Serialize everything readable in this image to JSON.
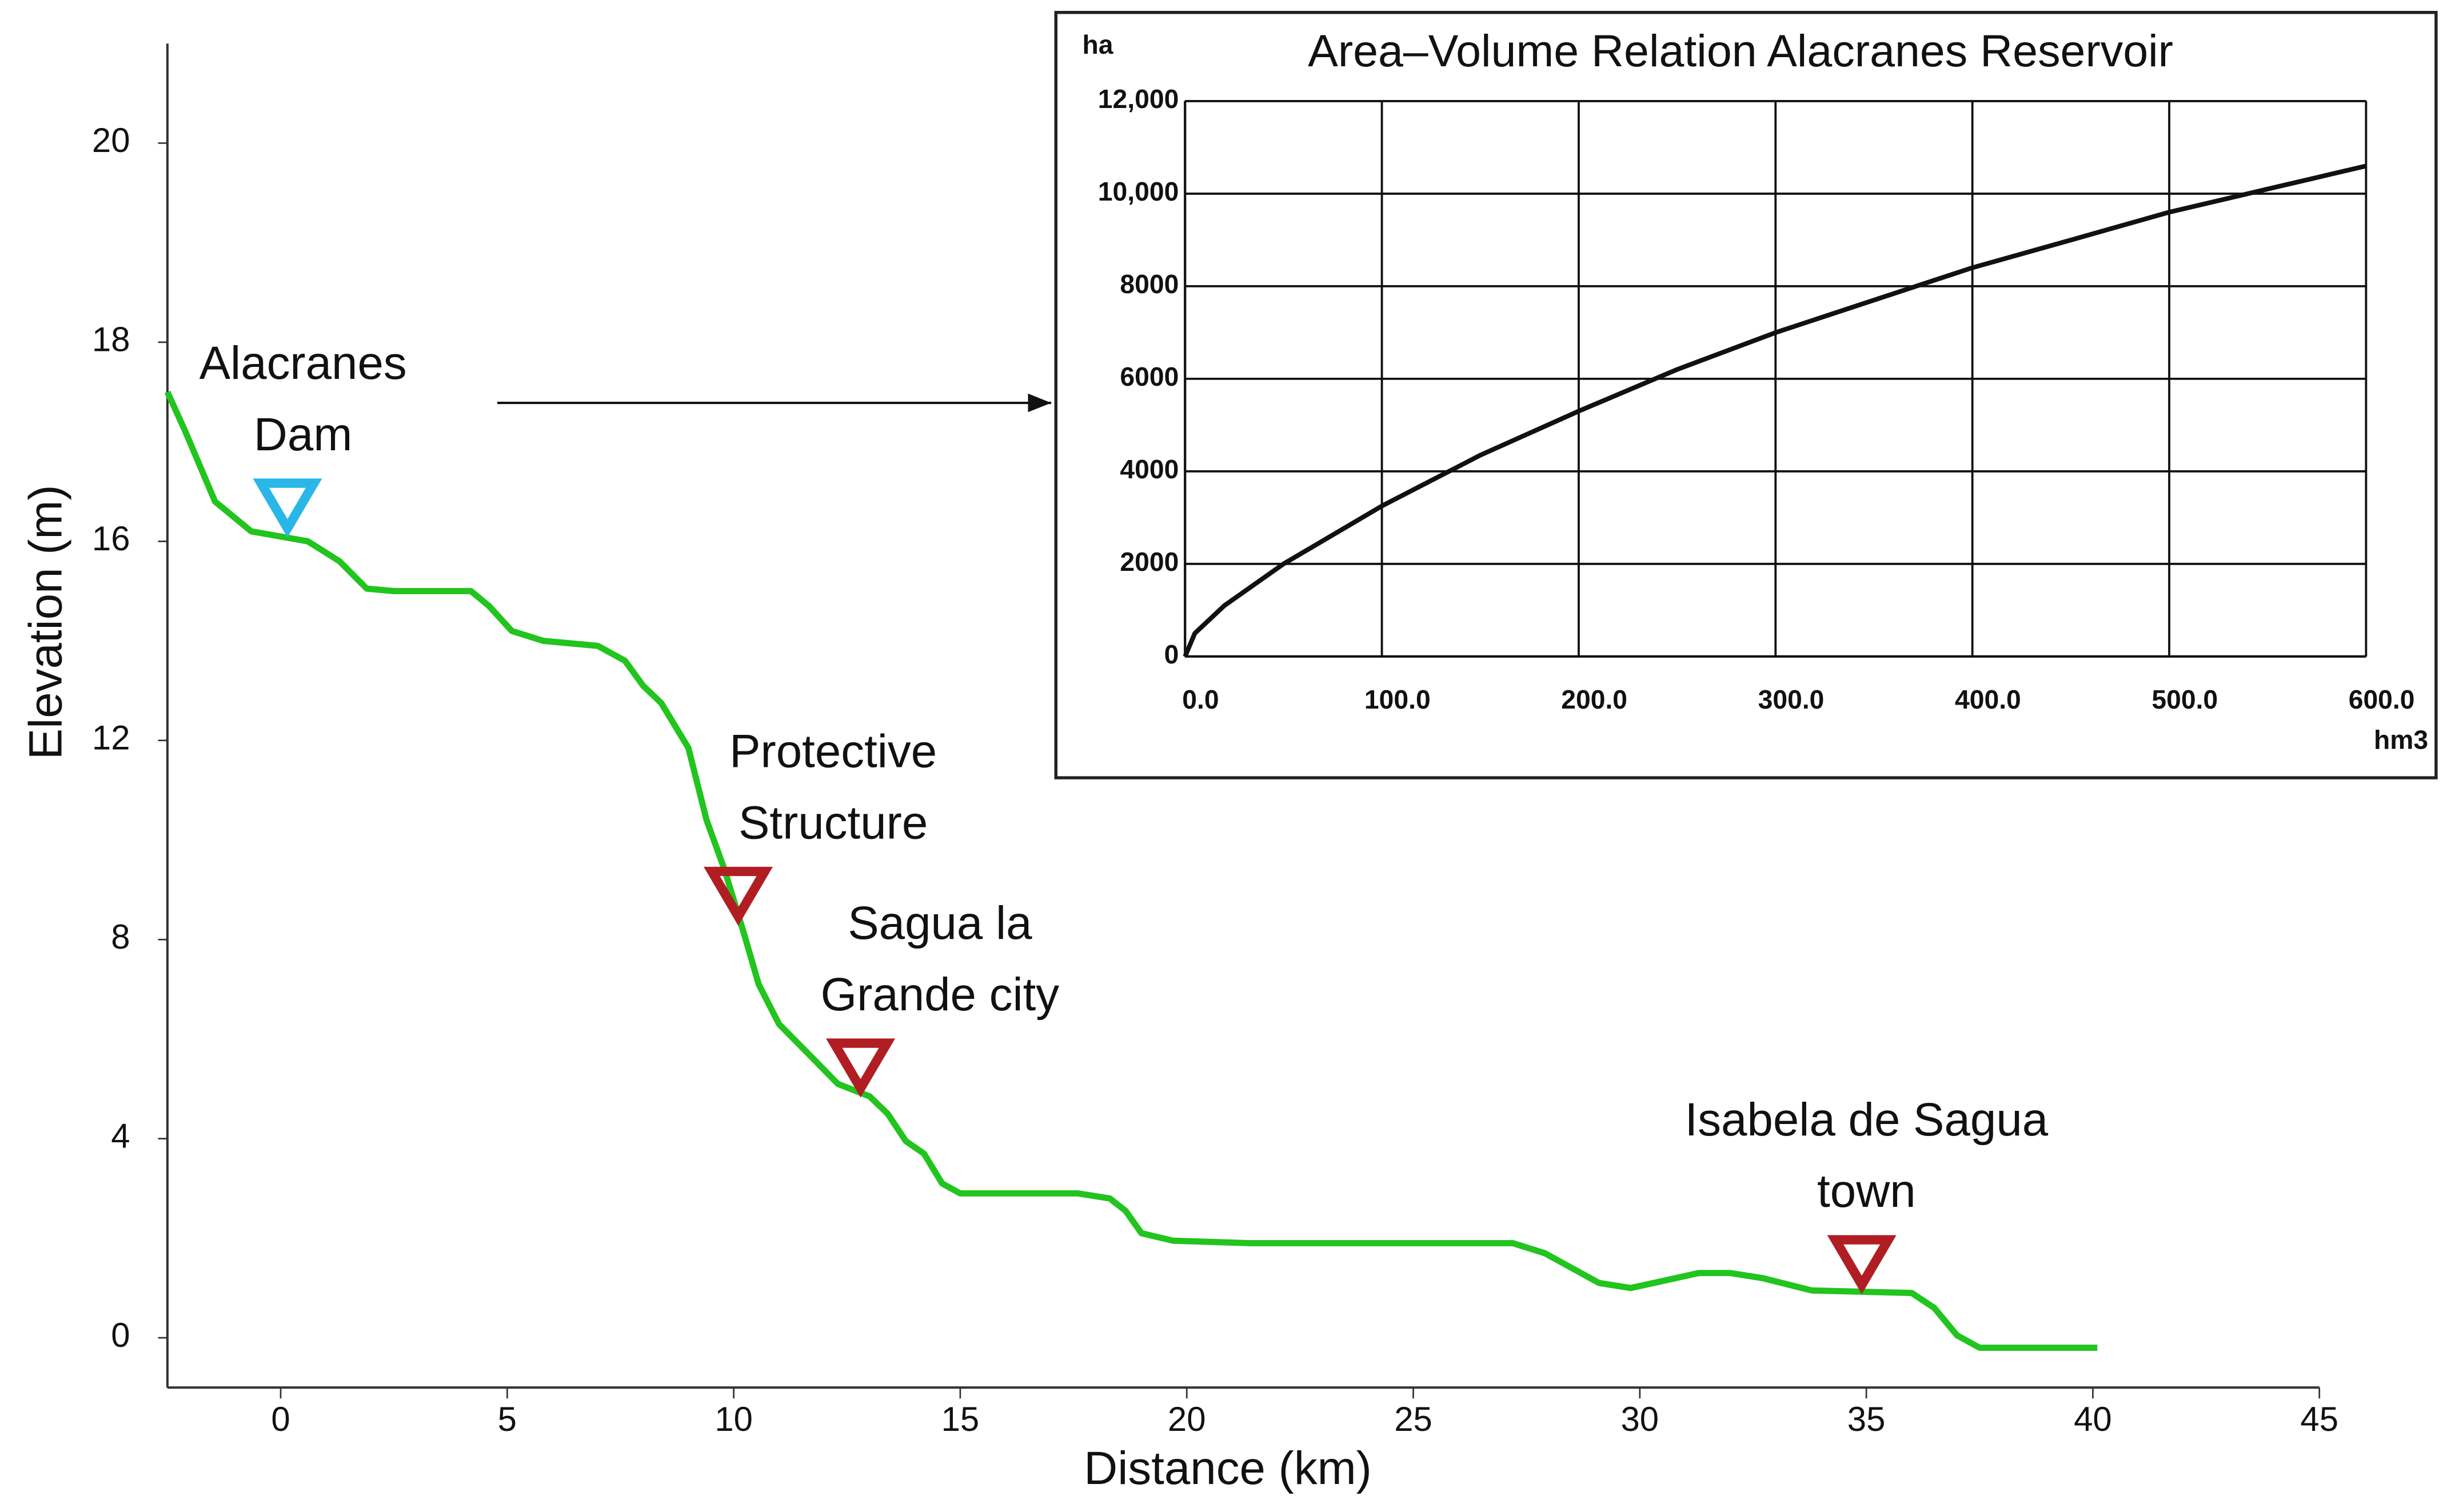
{
  "chart_data": [
    {
      "type": "line",
      "xlabel": "Distance (km)",
      "ylabel": "Elevation (m)",
      "xlim": [
        -2.5,
        45
      ],
      "xticks": [
        0,
        5,
        10,
        15,
        20,
        25,
        30,
        35,
        40,
        45
      ],
      "ylim": [
        -1,
        21
      ],
      "yticks": [
        0,
        4,
        8,
        12,
        16,
        18,
        20
      ],
      "series": [
        {
          "name": "Elevation",
          "color": "#22c41e",
          "x": [
            -2.5,
            -2.1,
            -1.45,
            -0.65,
            0.6,
            1.3,
            1.9,
            2.5,
            4.2,
            4.6,
            5.1,
            5.8,
            7.0,
            7.6,
            8.0,
            8.4,
            9.0,
            9.4,
            9.8,
            10.25,
            10.55,
            11.0,
            11.6,
            12.3,
            13.0,
            13.4,
            13.8,
            14.2,
            14.6,
            15.0,
            15.9,
            17.6,
            18.3,
            18.65,
            19.0,
            19.7,
            21.4,
            27.2,
            27.9,
            29.1,
            29.8,
            30.3,
            31.3,
            32.0,
            32.7,
            33.8,
            36.0,
            36.5,
            37.0,
            37.5,
            40.1
          ],
          "values": [
            17.5,
            17.1,
            16.4,
            16.1,
            16.0,
            15.6,
            15.05,
            15.0,
            15.0,
            14.7,
            14.2,
            14.0,
            13.9,
            13.6,
            13.1,
            12.75,
            11.85,
            10.4,
            9.4,
            8.05,
            7.1,
            6.3,
            5.75,
            5.1,
            4.85,
            4.5,
            3.95,
            3.7,
            3.1,
            2.9,
            2.9,
            2.9,
            2.8,
            2.55,
            2.1,
            1.95,
            1.9,
            1.9,
            1.7,
            1.1,
            1.0,
            1.1,
            1.3,
            1.3,
            1.2,
            0.95,
            0.9,
            0.6,
            0.05,
            -0.2,
            -0.2
          ]
        }
      ],
      "annotations": [
        {
          "text": [
            "Alacranes",
            "Dam"
          ],
          "x": 0.15,
          "y": 16.1,
          "color": "#2ab7e8"
        },
        {
          "text": [
            "Protective",
            "Structure"
          ],
          "x": 10.1,
          "y": 8.4,
          "color": "#b01e23"
        },
        {
          "text": [
            "Sagua la",
            "Grande city"
          ],
          "x": 12.8,
          "y": 4.95,
          "color": "#b01e23"
        },
        {
          "text": [
            "Isabela de Sagua",
            "town"
          ],
          "x": 34.9,
          "y": 1.0,
          "color": "#b01e23"
        }
      ]
    },
    {
      "type": "line",
      "title": "Area–Volume Relation Alacranes Reservoir",
      "xlabel": "hm3",
      "ylabel": "ha",
      "grid": true,
      "xlim": [
        0,
        600
      ],
      "xticks": [
        {
          "value": 0,
          "label": "0.0"
        },
        {
          "value": 100,
          "label": "100.0"
        },
        {
          "value": 200,
          "label": "200.0"
        },
        {
          "value": 300,
          "label": "300.0"
        },
        {
          "value": 400,
          "label": "400.0"
        },
        {
          "value": 500,
          "label": "500.0"
        },
        {
          "value": 600,
          "label": "600.0"
        }
      ],
      "ylim": [
        0,
        12000
      ],
      "yticks": [
        0,
        2000,
        4000,
        6000,
        8000,
        {
          "value": 10000,
          "label": "10,000"
        },
        {
          "value": 12000,
          "label": "12,000"
        }
      ],
      "series": [
        {
          "name": "Area",
          "color": "#111111",
          "x": [
            0,
            5,
            20,
            50,
            100,
            150,
            200,
            250,
            300,
            350,
            400,
            450,
            500,
            550,
            600
          ],
          "values": [
            0,
            500,
            1100,
            2000,
            3250,
            4350,
            5300,
            6200,
            7000,
            7700,
            8400,
            9000,
            9600,
            10100,
            10600
          ]
        }
      ]
    }
  ]
}
